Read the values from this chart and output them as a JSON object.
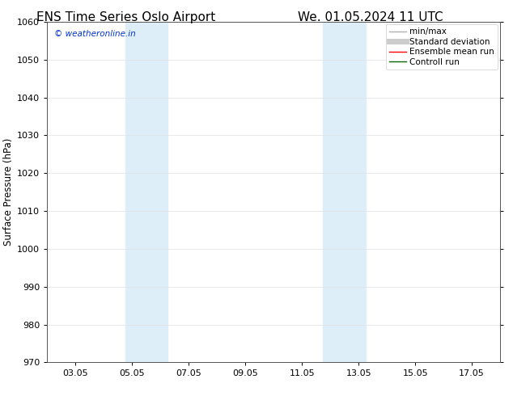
{
  "title_left": "ENS Time Series Oslo Airport",
  "title_right": "We. 01.05.2024 11 UTC",
  "ylabel": "Surface Pressure (hPa)",
  "ylim": [
    970,
    1060
  ],
  "yticks": [
    970,
    980,
    990,
    1000,
    1010,
    1020,
    1030,
    1040,
    1050,
    1060
  ],
  "xtick_labels": [
    "03.05",
    "05.05",
    "07.05",
    "09.05",
    "11.05",
    "13.05",
    "15.05",
    "17.05"
  ],
  "xtick_positions": [
    2,
    4,
    6,
    8,
    10,
    12,
    14,
    16
  ],
  "xlim": [
    1,
    17
  ],
  "shaded_bands": [
    {
      "x_start": 3.75,
      "x_end": 5.25
    },
    {
      "x_start": 10.75,
      "x_end": 12.25
    }
  ],
  "watermark": "© weatheronline.in",
  "watermark_color": "#0033cc",
  "background_color": "#ffffff",
  "plot_bg_color": "#ffffff",
  "shaded_color": "#ddeef8",
  "legend_items": [
    {
      "label": "min/max",
      "color": "#b0b0b0",
      "lw": 1.0,
      "ls": "-"
    },
    {
      "label": "Standard deviation",
      "color": "#cccccc",
      "lw": 5,
      "ls": "-"
    },
    {
      "label": "Ensemble mean run",
      "color": "#ff0000",
      "lw": 1.0,
      "ls": "-"
    },
    {
      "label": "Controll run",
      "color": "#006600",
      "lw": 1.0,
      "ls": "-"
    }
  ],
  "title_fontsize": 11,
  "ylabel_fontsize": 8.5,
  "tick_fontsize": 8,
  "watermark_fontsize": 7.5,
  "legend_fontsize": 7.5,
  "grid_color": "#e0e0e0",
  "grid_lw": 0.5
}
